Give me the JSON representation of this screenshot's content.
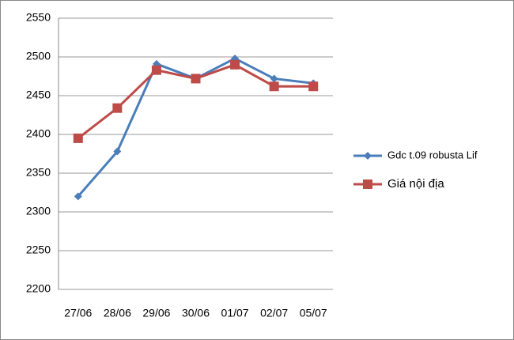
{
  "chart_data": {
    "type": "line",
    "categories": [
      "27/06",
      "28/06",
      "29/06",
      "30/06",
      "01/07",
      "02/07",
      "05/07"
    ],
    "series": [
      {
        "name": "Gdc t.09 robusta Lif",
        "color": "#4a7ebb",
        "marker": "diamond",
        "values": [
          2320,
          2378,
          2491,
          2472,
          2498,
          2472,
          2466
        ]
      },
      {
        "name": "Giá nội địa",
        "color": "#be4b48",
        "marker": "square",
        "values": [
          2395,
          2434,
          2483,
          2472,
          2490,
          2462,
          2462
        ]
      }
    ],
    "ylim": [
      2200,
      2550
    ],
    "yticks": [
      2200,
      2250,
      2300,
      2350,
      2400,
      2450,
      2500,
      2550
    ],
    "grid": true,
    "legend": "right"
  }
}
